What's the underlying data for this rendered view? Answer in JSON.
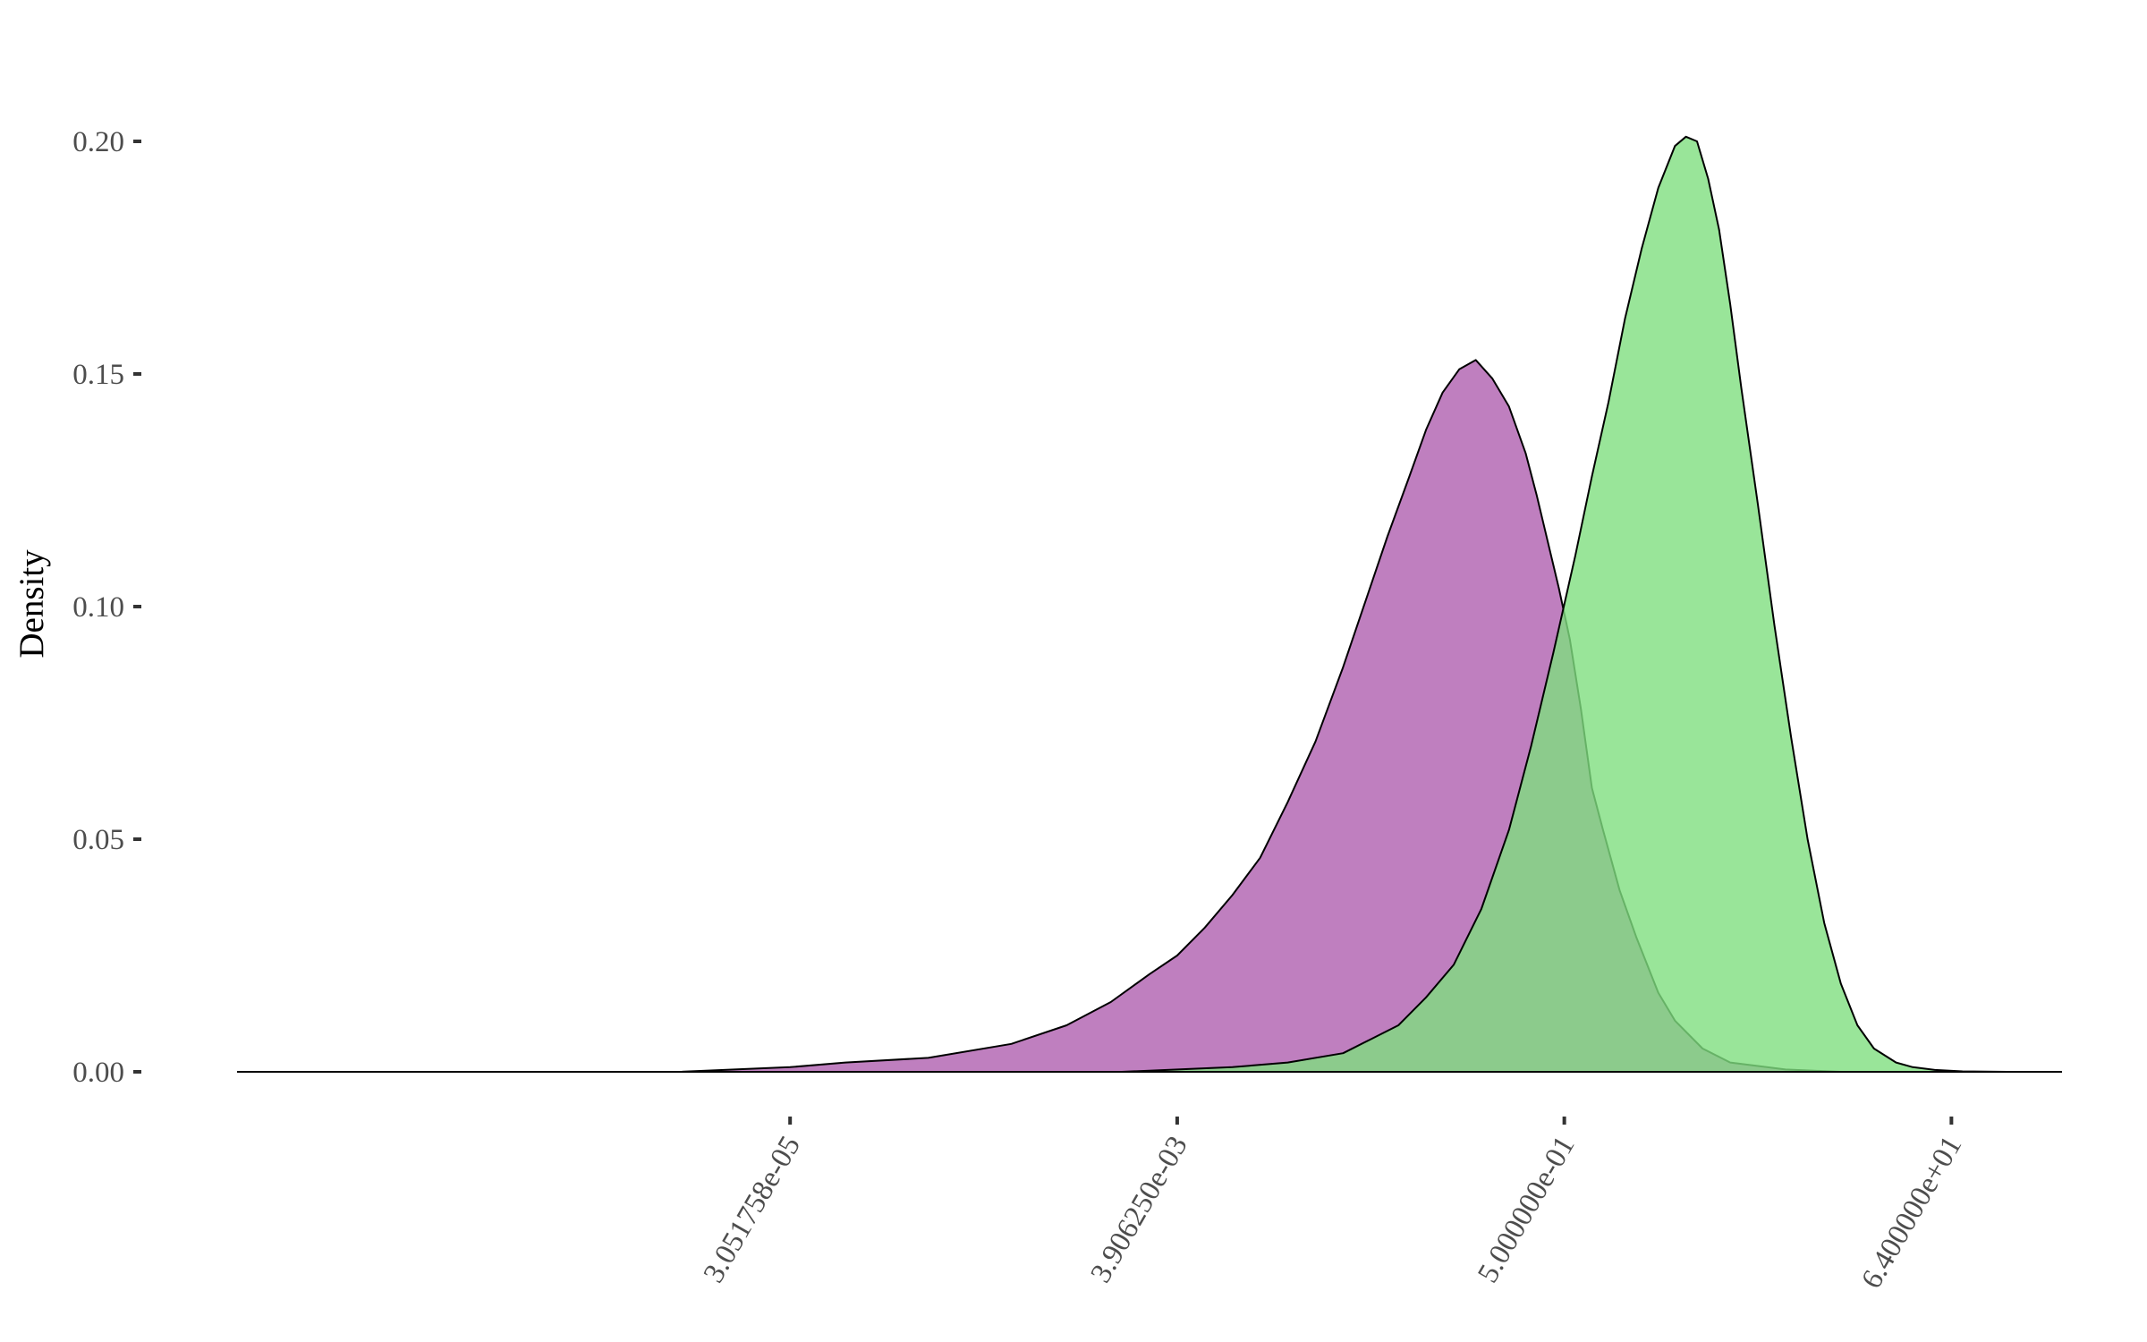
{
  "chart_data": {
    "type": "area",
    "subtype": "density",
    "title": "",
    "xlabel": "",
    "ylabel": "Density",
    "x_scale": "log2",
    "x_unit_note": "x values are log2 of the quantity shown on the x tick labels",
    "xlim": [
      -25.0,
      8.0
    ],
    "ylim": [
      0,
      0.2
    ],
    "grid": false,
    "legend": "none",
    "x_ticks": [
      {
        "value": -15,
        "label": "3.051758e-05"
      },
      {
        "value": -8,
        "label": "3.906250e-03"
      },
      {
        "value": -1,
        "label": "5.000000e-01"
      },
      {
        "value": 6,
        "label": "6.400000e+01"
      }
    ],
    "y_ticks": [
      {
        "value": 0.0,
        "label": "0.00"
      },
      {
        "value": 0.05,
        "label": "0.05"
      },
      {
        "value": 0.1,
        "label": "0.10"
      },
      {
        "value": 0.15,
        "label": "0.15"
      },
      {
        "value": 0.2,
        "label": "0.20"
      }
    ],
    "series": [
      {
        "color": "#bf7fbf",
        "fill_opacity": 1,
        "x": [
          -19.9,
          -18.5,
          -17.0,
          -15.0,
          -14.0,
          -12.5,
          -11.0,
          -10.0,
          -9.2,
          -8.5,
          -8.0,
          -7.5,
          -7.0,
          -6.5,
          -6.0,
          -5.5,
          -5.0,
          -4.6,
          -4.2,
          -3.8,
          -3.5,
          -3.2,
          -2.9,
          -2.6,
          -2.3,
          -2.0,
          -1.7,
          -1.5,
          -1.3,
          -1.1,
          -0.9,
          -0.7,
          -0.5,
          -0.3,
          0.0,
          0.3,
          0.7,
          1.0,
          1.5,
          2.0,
          3.0,
          4.0
        ],
        "y": [
          0.0,
          0.0,
          0.0,
          0.001,
          0.002,
          0.003,
          0.006,
          0.01,
          0.015,
          0.021,
          0.025,
          0.031,
          0.038,
          0.046,
          0.058,
          0.071,
          0.087,
          0.101,
          0.115,
          0.128,
          0.138,
          0.146,
          0.151,
          0.153,
          0.149,
          0.143,
          0.133,
          0.124,
          0.114,
          0.104,
          0.093,
          0.078,
          0.061,
          0.052,
          0.039,
          0.029,
          0.017,
          0.011,
          0.005,
          0.002,
          0.0005,
          0.0
        ]
      },
      {
        "color": "#7fdf7f",
        "fill_opacity": 0.8,
        "x": [
          -13.0,
          -11.0,
          -9.0,
          -7.0,
          -6.0,
          -5.0,
          -4.5,
          -4.0,
          -3.5,
          -3.0,
          -2.5,
          -2.0,
          -1.6,
          -1.2,
          -0.8,
          -0.5,
          -0.2,
          0.1,
          0.4,
          0.7,
          1.0,
          1.2,
          1.4,
          1.6,
          1.8,
          2.0,
          2.2,
          2.5,
          2.8,
          3.1,
          3.4,
          3.7,
          4.0,
          4.3,
          4.6,
          5.0,
          5.3,
          5.7,
          6.2,
          7.0
        ],
        "y": [
          0.0,
          0.0,
          0.0,
          0.001,
          0.002,
          0.004,
          0.007,
          0.01,
          0.016,
          0.023,
          0.035,
          0.052,
          0.07,
          0.09,
          0.111,
          0.128,
          0.144,
          0.162,
          0.177,
          0.19,
          0.199,
          0.201,
          0.2,
          0.192,
          0.181,
          0.165,
          0.147,
          0.122,
          0.096,
          0.072,
          0.05,
          0.032,
          0.019,
          0.01,
          0.005,
          0.002,
          0.001,
          0.0004,
          0.0001,
          0.0
        ]
      }
    ]
  }
}
